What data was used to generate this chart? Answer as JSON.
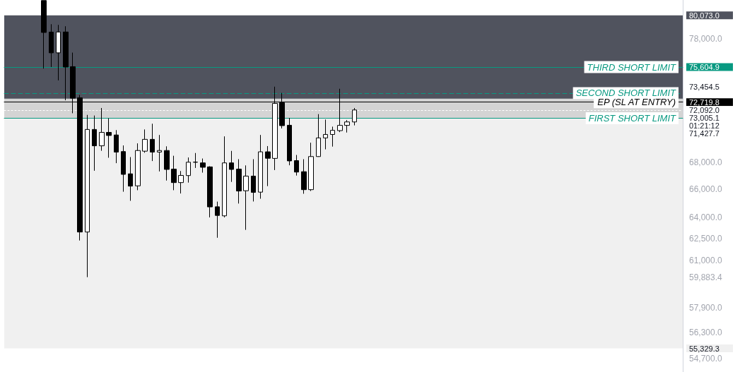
{
  "chart_data": {
    "type": "candlestick",
    "log": "y",
    "tick_labels": "y",
    "grid": false,
    "categories": [
      null,
      null,
      null,
      null,
      null,
      null,
      null,
      null,
      null,
      null,
      null,
      null,
      null,
      null,
      null,
      null,
      null,
      null,
      null,
      null,
      null,
      null,
      null,
      null,
      null,
      null,
      null,
      null,
      null,
      null,
      null,
      null,
      null,
      null,
      null,
      null,
      null,
      null,
      null,
      null,
      null,
      null,
      null,
      null,
      null,
      null,
      null,
      null,
      null,
      null,
      null,
      null,
      null,
      null,
      null,
      null,
      null,
      null,
      null,
      null,
      null,
      null,
      null,
      null,
      null,
      null,
      null,
      null,
      null,
      null,
      null,
      null,
      null,
      null,
      null,
      null,
      null,
      null,
      null,
      null,
      null,
      null,
      null,
      null,
      null,
      null,
      null,
      null,
      null,
      null,
      null,
      null,
      null,
      null
    ],
    "series": [
      {
        "color": "#000000",
        "ohlc": [
          null,
          null,
          null,
          null,
          null,
          [
            81400,
            81400,
            75480,
            78570
          ],
          [
            78600,
            79290,
            75610,
            76810
          ],
          [
            76810,
            79230,
            74500,
            78610
          ],
          [
            78610,
            79110,
            72870,
            75610
          ],
          [
            75640,
            76830,
            71830,
            73040
          ],
          [
            73070,
            73300,
            62370,
            62960
          ],
          [
            62960,
            71700,
            59883.4,
            70550
          ],
          [
            70550,
            71650,
            67390,
            69280
          ],
          [
            69280,
            72250,
            68900,
            70320
          ],
          [
            70320,
            71430,
            68370,
            70080
          ],
          [
            70120,
            70500,
            67960,
            68800
          ],
          [
            68840,
            69310,
            65840,
            67120
          ],
          [
            67160,
            68420,
            65180,
            66250
          ],
          [
            66270,
            69470,
            65950,
            68920
          ],
          [
            68870,
            70550,
            68750,
            69780
          ],
          [
            69780,
            71000,
            68120,
            68800
          ],
          [
            68800,
            70120,
            67340,
            68920
          ],
          [
            68920,
            69240,
            66660,
            67490
          ],
          [
            67510,
            68520,
            65950,
            66510
          ],
          [
            66510,
            67370,
            65710,
            67040
          ],
          [
            67030,
            68390,
            66510,
            68030
          ],
          [
            68030,
            68730,
            67600,
            68040
          ],
          [
            67980,
            68310,
            67250,
            67650
          ],
          [
            67680,
            67730,
            63990,
            64740
          ],
          [
            64750,
            65120,
            62560,
            64130
          ],
          [
            64100,
            70010,
            63990,
            67980
          ],
          [
            67980,
            68890,
            66560,
            67490
          ],
          [
            67510,
            68260,
            64980,
            65890
          ],
          [
            65910,
            67790,
            63110,
            66990
          ],
          [
            66990,
            68260,
            65130,
            65790
          ],
          [
            65810,
            70120,
            65330,
            68820
          ],
          [
            68820,
            69260,
            66250,
            68330
          ],
          [
            68320,
            73980,
            67440,
            72620
          ],
          [
            72670,
            73470,
            70630,
            70850
          ],
          [
            70880,
            71460,
            67800,
            68130
          ],
          [
            68150,
            68580,
            67030,
            67290
          ],
          [
            67320,
            68260,
            65690,
            65990
          ],
          [
            65990,
            69520,
            65890,
            68460
          ],
          [
            68460,
            71760,
            68440,
            69890
          ],
          [
            69890,
            71330,
            69010,
            70160
          ],
          [
            70160,
            70770,
            69220,
            70480
          ],
          [
            70460,
            73810,
            70340,
            70870
          ],
          [
            70870,
            71290,
            70310,
            71140
          ],
          [
            71140,
            72250,
            70870,
            72092
          ],
          null,
          null,
          null,
          null,
          null,
          null,
          null,
          null,
          null,
          null,
          null,
          null,
          null,
          null,
          null,
          null,
          null,
          null,
          null,
          null,
          null,
          null,
          null,
          null,
          null,
          null,
          null,
          null,
          null,
          null,
          null,
          null,
          null,
          null,
          null,
          null,
          null,
          null,
          null,
          null,
          null,
          null,
          null,
          null,
          null
        ]
      }
    ],
    "ylim": [
      53900,
      81450
    ],
    "yticks": [
      {
        "value": 80073,
        "label": "80,073.0"
      },
      {
        "value": 75604.9,
        "label": "75,604.9"
      },
      {
        "value": 72719.8,
        "label": "72,719.8"
      },
      {
        "value": 72092,
        "label": "72,092.0"
      },
      {
        "value": 59883.4,
        "label": "59,883.4"
      },
      {
        "value": 55329.3,
        "label": "55,329.3"
      },
      {
        "value": 78000,
        "label": "78,000.0"
      },
      {
        "value": 68000,
        "label": "68,000.0"
      },
      {
        "value": 66000,
        "label": "66,000.0"
      },
      {
        "value": 64000,
        "label": "64,000.0"
      },
      {
        "value": 62500,
        "label": "62,500.0"
      },
      {
        "value": 61000,
        "label": "61,000.0"
      },
      {
        "value": 57900,
        "label": "57,900.0"
      },
      {
        "value": 56300,
        "label": "56,300.0"
      },
      {
        "value": 54700,
        "label": "54,700.0"
      }
    ],
    "bands": [
      {
        "axis": "y",
        "from": 55329.3,
        "to": 73005.1,
        "label": null,
        "color": "#f0f0f0"
      },
      {
        "axis": "y",
        "from": 71427.7,
        "to": 75604.9,
        "label": null,
        "color": "#d4d4d4"
      },
      {
        "axis": "y",
        "from": 73005.1,
        "to": 80073,
        "label": null,
        "color": "#50535e"
      }
    ],
    "ref_lines": [
      {
        "axis": "y",
        "value": 75604.9,
        "label": "THIRD SHORT LIMIT",
        "color": "#089981",
        "line_style": "solid"
      },
      {
        "axis": "y",
        "value": 73454.5,
        "label": "SECOND SHORT LIMIT",
        "color": "#089981",
        "line_style": "dashed"
      },
      {
        "axis": "y",
        "value": 72719.8,
        "label": "EP (SL AT ENTRY)",
        "color": "#000000",
        "line_style": "solid"
      },
      {
        "axis": "y",
        "value": 71427.7,
        "label": "FIRST SHORT LIMIT",
        "color": "#089981",
        "line_style": "solid"
      },
      {
        "axis": "y",
        "value": 72092,
        "label": null,
        "color": "#ffffff",
        "line_style": "dotted"
      }
    ],
    "annotations": [
      "73,454.5",
      "73,005.1",
      "01:21:12",
      "71,427.7"
    ]
  }
}
